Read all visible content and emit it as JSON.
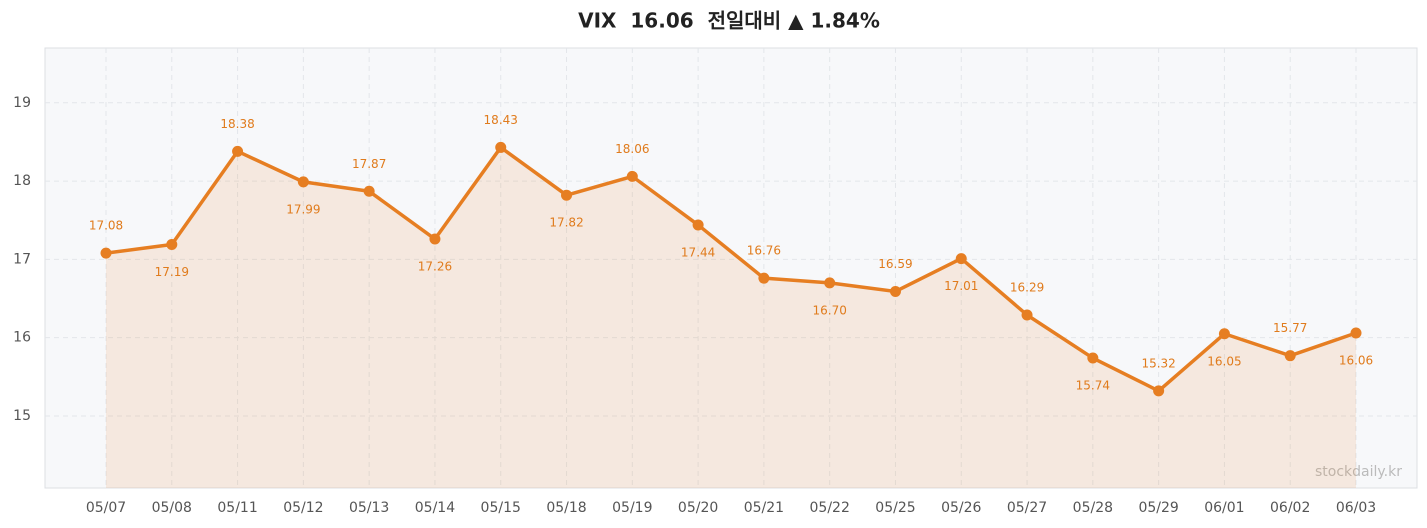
{
  "chart_data": {
    "type": "line",
    "title": "VIX  16.06  전일대비 ▲ 1.84%",
    "categories": [
      "05/07",
      "05/08",
      "05/11",
      "05/12",
      "05/13",
      "05/14",
      "05/15",
      "05/18",
      "05/19",
      "05/20",
      "05/21",
      "05/22",
      "05/25",
      "05/26",
      "05/27",
      "05/28",
      "05/29",
      "06/01",
      "06/02",
      "06/03"
    ],
    "series": [
      {
        "color": "#e67e22",
        "values": [
          17.08,
          17.19,
          18.38,
          17.99,
          17.87,
          17.26,
          18.43,
          17.82,
          18.06,
          17.44,
          16.76,
          16.7,
          16.59,
          17.01,
          16.29,
          15.74,
          15.32,
          16.05,
          15.77,
          16.06
        ],
        "value_labels": [
          "17.08",
          "17.19",
          "18.38",
          "17.99",
          "17.87",
          "17.26",
          "18.43",
          "17.82",
          "18.06",
          "17.44",
          "16.76",
          "16.70",
          "16.59",
          "17.01",
          "16.29",
          "15.74",
          "15.32",
          "16.05",
          "15.77",
          "16.06"
        ]
      }
    ],
    "ylim": [
      14.08,
      19.7
    ],
    "yticks": [
      15,
      16,
      17,
      18,
      19
    ],
    "grid": true,
    "area": true,
    "watermark": "stockdaily.kr"
  }
}
